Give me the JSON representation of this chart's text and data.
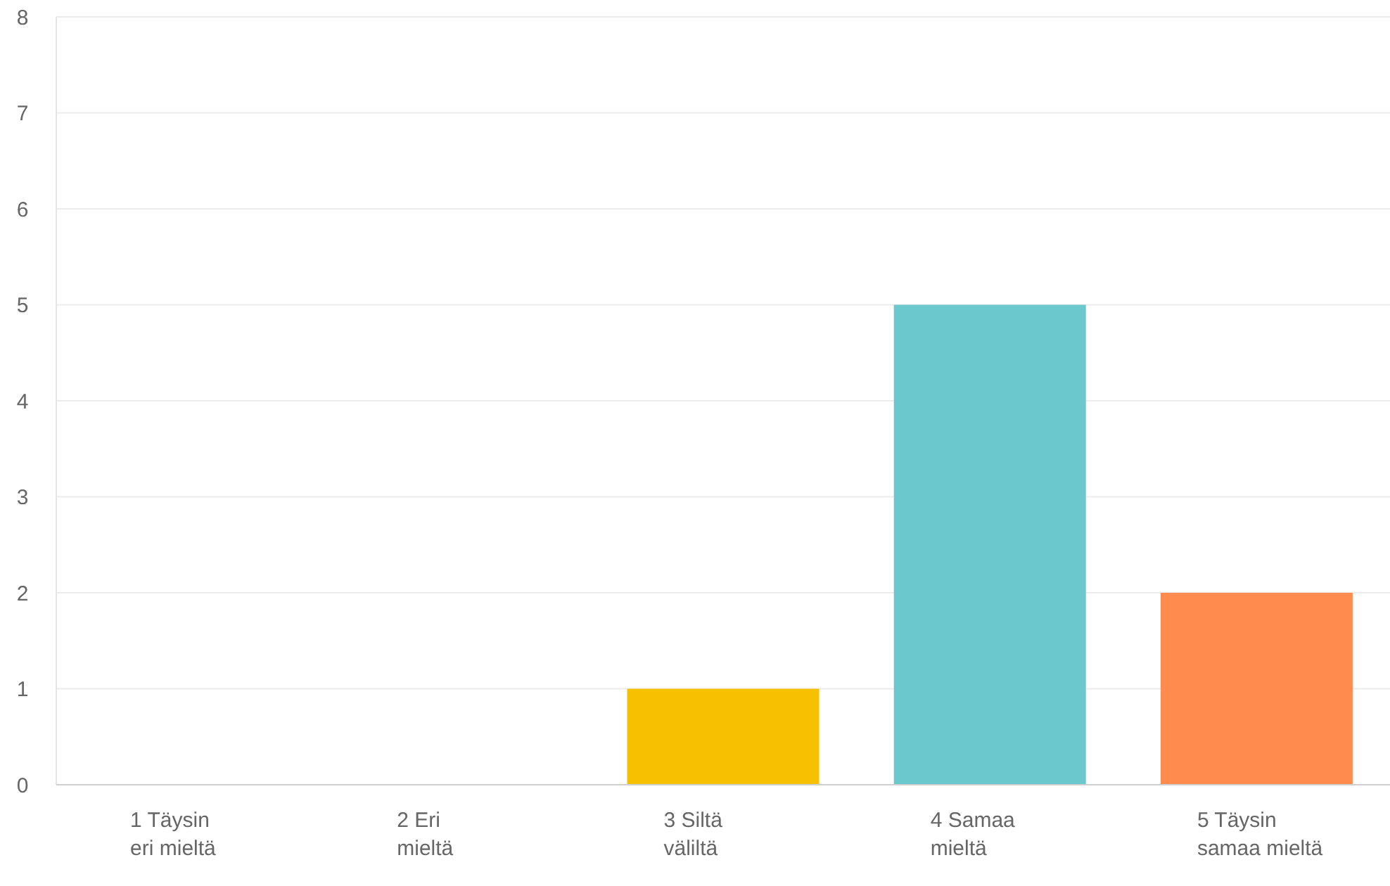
{
  "chart_data": {
    "type": "bar",
    "categories": [
      "1 Täysin eri mieltä",
      "2 Eri mieltä",
      "3 Siltä väliltä",
      "4 Samaa mieltä",
      "5 Täysin samaa mieltä"
    ],
    "values": [
      0,
      0,
      1,
      5,
      2
    ],
    "colors": [
      "#507cb6",
      "#00bf6f",
      "#f7c000",
      "#6bc8cd",
      "#ff8b4f"
    ],
    "ylim": [
      0,
      8
    ],
    "yticks": [
      0,
      1,
      2,
      3,
      4,
      5,
      6,
      7,
      8
    ],
    "grid": "y"
  }
}
